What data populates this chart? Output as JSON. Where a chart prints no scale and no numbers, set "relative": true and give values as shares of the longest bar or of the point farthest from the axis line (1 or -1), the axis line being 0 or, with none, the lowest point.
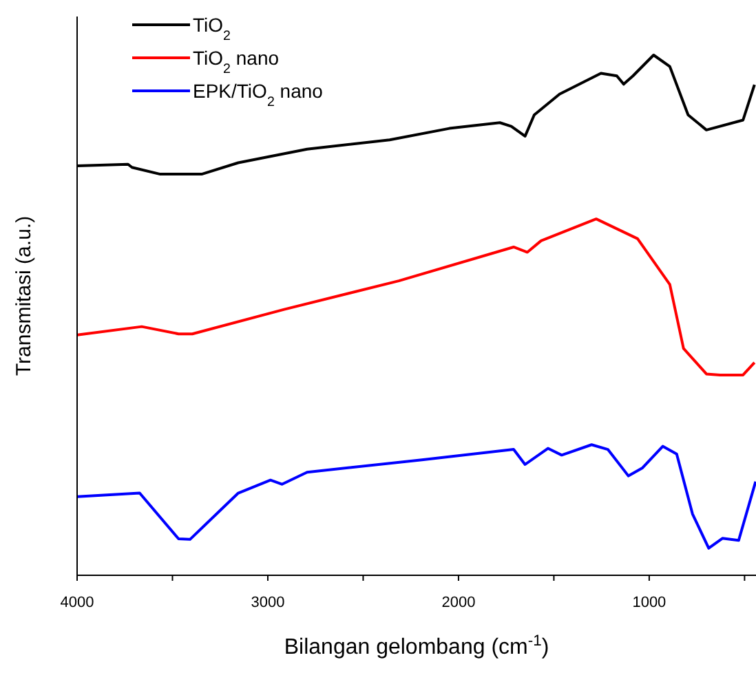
{
  "chart_data": {
    "type": "line",
    "relative": true,
    "xlabel": "Bilangan gelombang (cm$^{-1}$)",
    "ylabel": "Transmitasi (a.u.)",
    "xlim": [
      4000,
      440
    ],
    "xticks": [
      4000,
      {
        "value": 3500,
        "label": null
      },
      3000,
      {
        "value": 2500,
        "label": null
      },
      2000,
      {
        "value": 1500,
        "label": null
      },
      1000,
      {
        "value": 500,
        "label": null
      }
    ],
    "grid": false,
    "legend": "top left",
    "line_style": "solid",
    "tick_labels": "x",
    "series": [
      {
        "name": "TiO$_{2}$",
        "color": "#000000",
        "x": [
          4000,
          3733,
          3712,
          3564,
          3347,
          3155,
          2794,
          2361,
          2048,
          1783,
          1723,
          1651,
          1603,
          1470,
          1253,
          1170,
          1134,
          1085,
          977,
          892,
          796,
          700,
          508,
          448
        ],
        "values": [
          0.787,
          0.79,
          0.784,
          0.771,
          0.771,
          0.793,
          0.819,
          0.837,
          0.859,
          0.87,
          0.863,
          0.844,
          0.885,
          0.925,
          0.965,
          0.96,
          0.944,
          0.96,
          1.0,
          0.978,
          0.885,
          0.856,
          0.875,
          0.943
        ]
      },
      {
        "name": "TiO$_{2}$ nano",
        "color": "#ff0000",
        "x": [
          4000,
          3661,
          3468,
          3396,
          2914,
          2313,
          1711,
          1639,
          1567,
          1278,
          1061,
          892,
          820,
          700,
          628,
          508,
          448
        ],
        "values": [
          0.462,
          0.478,
          0.464,
          0.464,
          0.511,
          0.566,
          0.631,
          0.621,
          0.643,
          0.685,
          0.647,
          0.559,
          0.436,
          0.387,
          0.385,
          0.385,
          0.409
        ]
      },
      {
        "name": "EPK/TiO$_{2}$ nano",
        "color": "#0000ff",
        "x": [
          4000,
          3672,
          3468,
          3408,
          3155,
          2986,
          2926,
          2794,
          2192,
          1711,
          1651,
          1531,
          1459,
          1302,
          1217,
          1109,
          1037,
          929,
          856,
          773,
          688,
          616,
          531,
          442
        ],
        "values": [
          0.151,
          0.158,
          0.07,
          0.069,
          0.158,
          0.183,
          0.175,
          0.198,
          0.222,
          0.242,
          0.213,
          0.244,
          0.231,
          0.251,
          0.242,
          0.191,
          0.206,
          0.248,
          0.233,
          0.118,
          0.052,
          0.071,
          0.067,
          0.18
        ]
      }
    ]
  }
}
